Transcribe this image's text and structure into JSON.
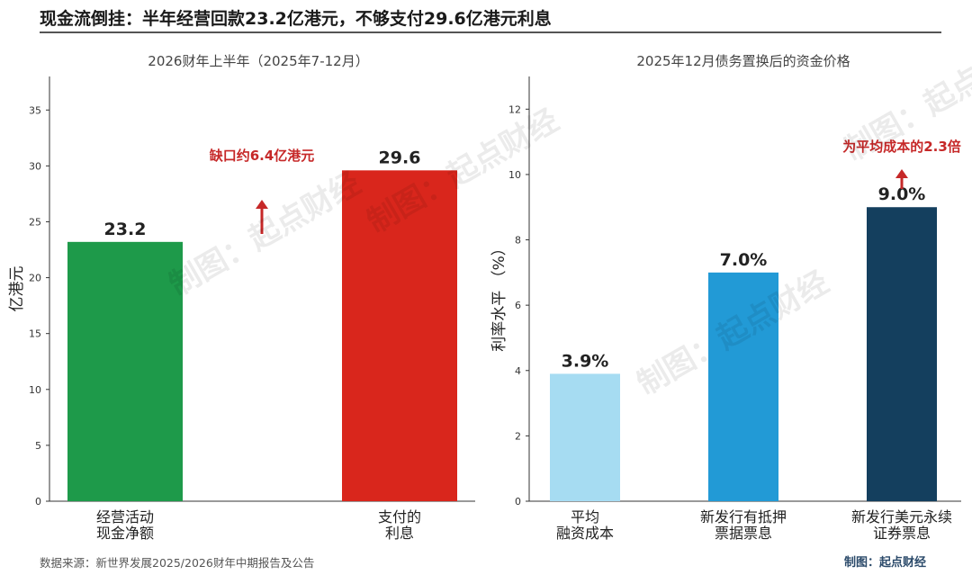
{
  "page": {
    "title": "现金流倒挂：半年经营回款23.2亿港元，不够支付29.6亿港元利息",
    "source": "数据来源：新世界发展2025/2026财年中期报告及公告",
    "credit": "制图：起点财经",
    "watermark": "制图：起点财经"
  },
  "chart_data": [
    {
      "type": "bar",
      "title": "2026财年上半年（2025年7-12月）",
      "ylabel": "亿港元",
      "ylim": [
        0,
        38
      ],
      "yticks": [
        0,
        5,
        10,
        15,
        20,
        25,
        30,
        35
      ],
      "categories": [
        [
          "经营活动",
          "现金净额"
        ],
        [
          "支付的",
          "利息"
        ]
      ],
      "values": [
        23.2,
        29.6
      ],
      "value_labels": [
        "23.2",
        "29.6"
      ],
      "colors": [
        "#1e9a4a",
        "#d9261c"
      ],
      "annotation": {
        "text": "缺口约6.4亿港元",
        "color": "#c62828"
      },
      "grid": false,
      "legend": "none"
    },
    {
      "type": "bar",
      "title": "2025年12月债务置换后的资金价格",
      "ylabel": "利率水平 （%）",
      "ylim": [
        0,
        13
      ],
      "yticks": [
        0,
        2,
        4,
        6,
        8,
        10,
        12
      ],
      "categories": [
        [
          "平均",
          "融资成本"
        ],
        [
          "新发行有抵押",
          "票据票息"
        ],
        [
          "新发行美元永续",
          "证券票息"
        ]
      ],
      "values": [
        3.9,
        7.0,
        9.0
      ],
      "value_labels": [
        "3.9%",
        "7.0%",
        "9.0%"
      ],
      "colors": [
        "#a6dcf2",
        "#229ad6",
        "#143f5e"
      ],
      "annotation": {
        "text": "为平均成本的2.3倍",
        "color": "#c62828"
      },
      "grid": false,
      "legend": "none"
    }
  ]
}
